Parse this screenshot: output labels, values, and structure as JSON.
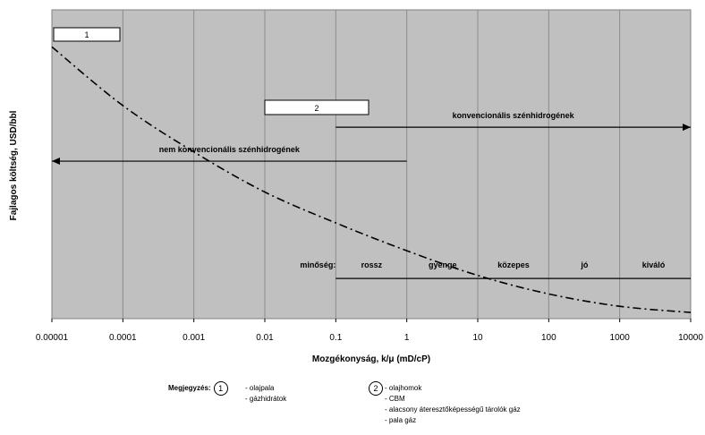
{
  "chart_data": {
    "type": "line",
    "title": "",
    "xlabel": "Mozgékonyság, k/μ (mD/cP)",
    "ylabel": "Fajlagos költség, USD/bbl",
    "xscale": "log",
    "xlim": [
      1e-05,
      10000
    ],
    "ylim": [
      0,
      100
    ],
    "grid": true,
    "x_tick_labels": [
      "0.00001",
      "0.0001",
      "0.001",
      "0.01",
      "0.1",
      "1",
      "10",
      "100",
      "1000",
      "10000"
    ],
    "series": [
      {
        "name": "",
        "style": "dash-dot",
        "x": [
          1e-05,
          0.0001,
          0.001,
          0.01,
          0.1,
          1,
          10,
          100,
          1000,
          10000
        ],
        "y": [
          88,
          69,
          54,
          41,
          31,
          22,
          14,
          8,
          4,
          2
        ]
      }
    ],
    "annotations": {
      "box1": "1",
      "box2": "2",
      "conventional_arrow": {
        "label": "konvencionális szénhidrogének",
        "from": 0.1,
        "to": 10000,
        "y": 62
      },
      "unconventional_arrow": {
        "label": "nem konvencionális szénhidrogének",
        "from": 1,
        "to": 1e-05,
        "y": 51
      },
      "mobility_label": "minőség:",
      "mobility_line": {
        "from": 0.1,
        "to": 10000,
        "y": 13
      },
      "mobility_classes": [
        {
          "label": "rossz",
          "x": 0.32
        },
        {
          "label": "gyenge",
          "x": 3.2
        },
        {
          "label": "közepes",
          "x": 32
        },
        {
          "label": "jó",
          "x": 320
        },
        {
          "label": "kiváló",
          "x": 3000
        }
      ]
    }
  },
  "note": {
    "title": "Megjegyzés:",
    "group1": {
      "number": "1",
      "items": [
        "- olajpala",
        "- gázhidrátok"
      ]
    },
    "group2": {
      "number": "2",
      "items": [
        "- olajhomok",
        "- CBM",
        "- alacsony áteresztőképességű tárolók gáz",
        "- pala gáz"
      ]
    }
  },
  "colors": {
    "plot_background": "#c0c0c0",
    "grid": "#8c8c8c",
    "line": "#000000"
  }
}
